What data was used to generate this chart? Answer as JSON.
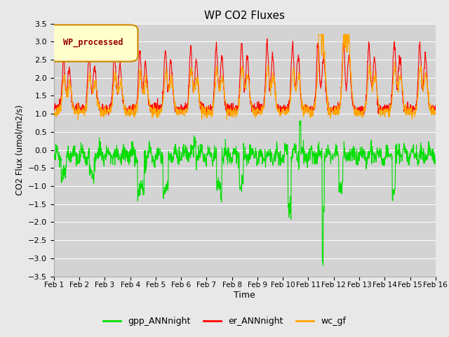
{
  "title": "WP CO2 Fluxes",
  "xlabel": "Time",
  "ylabel": "CO2 Flux (umol/m2/s)",
  "ylim": [
    -3.5,
    3.5
  ],
  "yticks": [
    -3.5,
    -3.0,
    -2.5,
    -2.0,
    -1.5,
    -1.0,
    -0.5,
    0.0,
    0.5,
    1.0,
    1.5,
    2.0,
    2.5,
    3.0,
    3.5
  ],
  "xlim_days": [
    1,
    16
  ],
  "xtick_days": [
    1,
    2,
    3,
    4,
    5,
    6,
    7,
    8,
    9,
    10,
    11,
    12,
    13,
    14,
    15,
    16
  ],
  "xtick_labels": [
    "Feb 1",
    "Feb 2",
    "Feb 3",
    "Feb 4",
    "Feb 5",
    "Feb 6",
    "Feb 7",
    "Feb 8",
    "Feb 9",
    "Feb 10",
    "Feb 11",
    "Feb 12",
    "Feb 13",
    "Feb 14",
    "Feb 15",
    "Feb 16"
  ],
  "color_gpp": "#00dd00",
  "color_er": "#ff0000",
  "color_wc": "#ffa500",
  "fig_bg_color": "#e8e8e8",
  "ax_bg_color": "#d3d3d3",
  "grid_color": "#ffffff",
  "legend_box_label": "WP_processed",
  "legend_box_facecolor": "#ffffcc",
  "legend_box_edgecolor": "#cc8800",
  "legend_box_textcolor": "#990000",
  "legend_labels": [
    "gpp_ANNnight",
    "er_ANNnight",
    "wc_gf"
  ],
  "linewidth": 0.8
}
